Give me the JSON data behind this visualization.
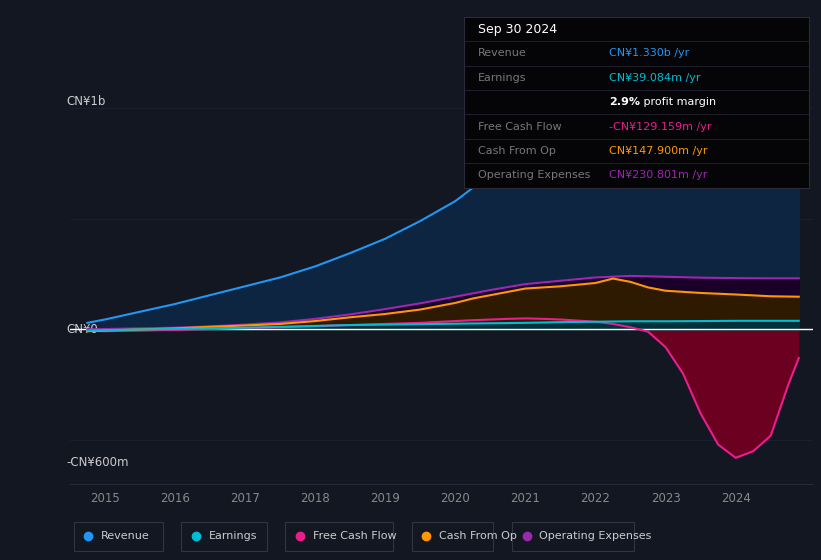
{
  "bg_color": "#131722",
  "grid_color": "#1e2235",
  "zero_line_color": "#ffffff",
  "y_label_top": "CN¥1b",
  "y_label_bottom": "-CN¥600m",
  "y_label_zero": "CN¥0",
  "x_ticks": [
    2015,
    2016,
    2017,
    2018,
    2019,
    2020,
    2021,
    2022,
    2023,
    2024
  ],
  "xlim": [
    2014.5,
    2025.1
  ],
  "ylim": [
    -700,
    1400
  ],
  "Revenue": {
    "color": "#2196f3",
    "fill": "#0d2540",
    "x": [
      2014.75,
      2015.0,
      2015.5,
      2016.0,
      2016.5,
      2017.0,
      2017.5,
      2018.0,
      2018.5,
      2019.0,
      2019.5,
      2020.0,
      2020.5,
      2021.0,
      2021.5,
      2022.0,
      2022.25,
      2022.5,
      2022.75,
      2023.0,
      2023.25,
      2023.5,
      2023.75,
      2024.0,
      2024.25,
      2024.5,
      2024.75,
      2024.9
    ],
    "y": [
      30,
      45,
      80,
      115,
      155,
      195,
      235,
      285,
      345,
      410,
      490,
      580,
      700,
      820,
      950,
      1100,
      1160,
      1180,
      1150,
      1100,
      1080,
      1110,
      1160,
      1210,
      1260,
      1300,
      1330,
      1330
    ]
  },
  "Earnings": {
    "color": "#00bcd4",
    "fill": "#00303a",
    "x": [
      2014.75,
      2015.0,
      2015.5,
      2016.0,
      2016.5,
      2017.0,
      2017.5,
      2018.0,
      2018.5,
      2019.0,
      2019.5,
      2020.0,
      2020.5,
      2021.0,
      2021.5,
      2022.0,
      2022.5,
      2023.0,
      2023.5,
      2024.0,
      2024.5,
      2024.9
    ],
    "y": [
      -5,
      -3,
      0,
      2,
      5,
      8,
      12,
      16,
      20,
      22,
      24,
      26,
      28,
      30,
      33,
      35,
      37,
      37,
      38,
      39,
      39,
      39
    ]
  },
  "Free Cash Flow": {
    "color": "#e91e8c",
    "fill_neg": "#6b0020",
    "fill_pos": "#1a3322",
    "x": [
      2014.75,
      2015.0,
      2015.5,
      2016.0,
      2016.5,
      2017.0,
      2017.5,
      2018.0,
      2018.5,
      2019.0,
      2019.5,
      2020.0,
      2020.25,
      2020.5,
      2020.75,
      2021.0,
      2021.25,
      2021.5,
      2021.75,
      2022.0,
      2022.25,
      2022.5,
      2022.75,
      2023.0,
      2023.25,
      2023.5,
      2023.75,
      2024.0,
      2024.25,
      2024.5,
      2024.75,
      2024.9
    ],
    "y": [
      -5,
      -8,
      -5,
      -2,
      2,
      6,
      10,
      15,
      20,
      25,
      30,
      38,
      42,
      45,
      48,
      50,
      48,
      45,
      40,
      35,
      25,
      10,
      -10,
      -80,
      -200,
      -380,
      -520,
      -580,
      -550,
      -480,
      -250,
      -129
    ]
  },
  "Cash From Op": {
    "color": "#ff9800",
    "fill": "#2d1a00",
    "x": [
      2014.75,
      2015.0,
      2015.5,
      2016.0,
      2016.5,
      2017.0,
      2017.5,
      2018.0,
      2018.5,
      2019.0,
      2019.5,
      2020.0,
      2020.25,
      2020.5,
      2020.75,
      2021.0,
      2021.5,
      2022.0,
      2022.25,
      2022.5,
      2022.75,
      2023.0,
      2023.5,
      2024.0,
      2024.5,
      2024.9
    ],
    "y": [
      -8,
      -5,
      0,
      5,
      12,
      18,
      25,
      38,
      55,
      70,
      90,
      120,
      140,
      155,
      170,
      185,
      195,
      210,
      230,
      215,
      190,
      175,
      165,
      158,
      150,
      148
    ]
  },
  "Operating Expenses": {
    "color": "#9c27b0",
    "fill": "#1a0028",
    "x": [
      2014.75,
      2015.0,
      2015.5,
      2016.0,
      2016.5,
      2017.0,
      2017.5,
      2018.0,
      2018.5,
      2019.0,
      2019.5,
      2020.0,
      2020.5,
      2021.0,
      2021.5,
      2022.0,
      2022.5,
      2023.0,
      2023.5,
      2024.0,
      2024.5,
      2024.9
    ],
    "y": [
      0,
      2,
      5,
      8,
      14,
      22,
      32,
      48,
      68,
      92,
      118,
      148,
      178,
      205,
      220,
      235,
      242,
      238,
      234,
      232,
      231,
      231
    ]
  },
  "info_box_rows": [
    {
      "label": "Sep 30 2024",
      "value": "",
      "label_color": "#ffffff",
      "value_color": "#ffffff",
      "is_title": true
    },
    {
      "label": "Revenue",
      "value": "CN¥1.330b /yr",
      "label_color": "#777777",
      "value_color": "#2196f3"
    },
    {
      "label": "Earnings",
      "value": "CN¥39.084m /yr",
      "label_color": "#777777",
      "value_color": "#00bcd4"
    },
    {
      "label": "",
      "value": "2.9% profit margin",
      "label_color": "#777777",
      "value_color": "#ffffff",
      "is_margin": true
    },
    {
      "label": "Free Cash Flow",
      "value": "-CN¥129.159m /yr",
      "label_color": "#777777",
      "value_color": "#e91e8c"
    },
    {
      "label": "Cash From Op",
      "value": "CN¥147.900m /yr",
      "label_color": "#777777",
      "value_color": "#ff9800"
    },
    {
      "label": "Operating Expenses",
      "value": "CN¥230.801m /yr",
      "label_color": "#777777",
      "value_color": "#9c27b0"
    }
  ],
  "legend": [
    {
      "label": "Revenue",
      "color": "#2196f3"
    },
    {
      "label": "Earnings",
      "color": "#00bcd4"
    },
    {
      "label": "Free Cash Flow",
      "color": "#e91e8c"
    },
    {
      "label": "Cash From Op",
      "color": "#ff9800"
    },
    {
      "label": "Operating Expenses",
      "color": "#9c27b0"
    }
  ]
}
